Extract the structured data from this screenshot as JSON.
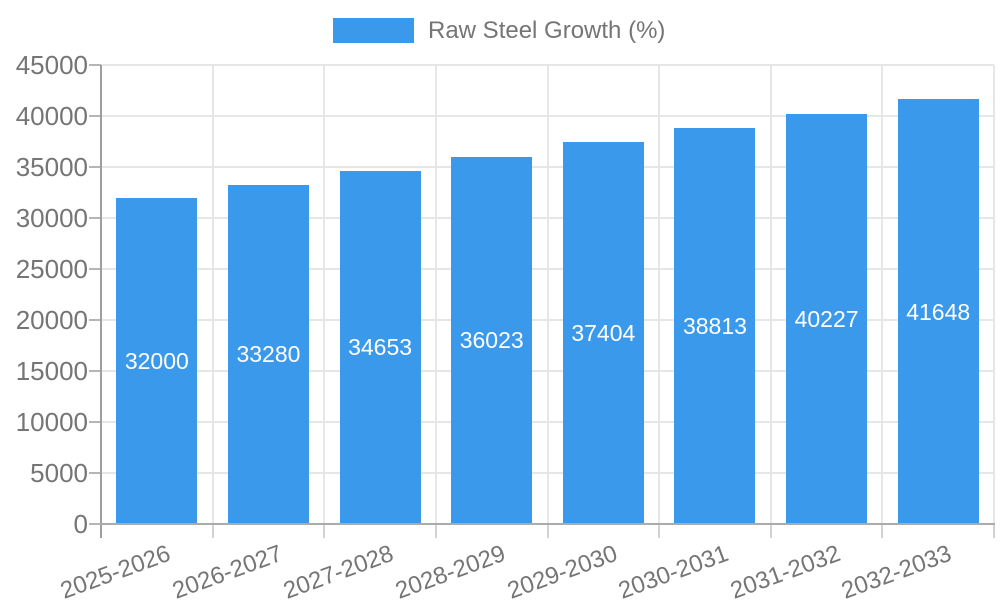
{
  "legend": {
    "label": "Raw Steel Growth (%)",
    "swatch_color": "#3B99EC"
  },
  "chart_data": {
    "type": "bar",
    "title": "",
    "xlabel": "",
    "ylabel": "",
    "series_name": "Raw Steel Growth (%)",
    "categories": [
      "2025-2026",
      "2026-2027",
      "2027-2028",
      "2028-2029",
      "2029-2030",
      "2030-2031",
      "2031-2032",
      "2032-2033"
    ],
    "values": [
      32000,
      33280,
      34653,
      36023,
      37404,
      38813,
      40227,
      41648
    ],
    "value_labels": [
      "32000",
      "33280",
      "34653",
      "36023",
      "37404",
      "38813",
      "40227",
      "41648"
    ],
    "ylim": [
      0,
      45000
    ],
    "y_ticks": [
      0,
      5000,
      10000,
      15000,
      20000,
      25000,
      30000,
      35000,
      40000,
      45000
    ],
    "y_tick_labels": [
      "0",
      "5000",
      "10000",
      "15000",
      "20000",
      "25000",
      "30000",
      "35000",
      "40000",
      "45000"
    ],
    "grid": true,
    "legend_position": "top",
    "x_tick_rotation_deg": -20,
    "colors": {
      "bar": "#3B99EC",
      "value_label": "#FFFFFF",
      "axis_label": "#757575",
      "grid_line": "#E6E6E6",
      "y_axis_line": "#9E9E9E",
      "x_axis_line": "#ABABAB",
      "y_tick_mark": "#B5B5B5",
      "x_tick_mark": "#D2D2D2"
    }
  }
}
